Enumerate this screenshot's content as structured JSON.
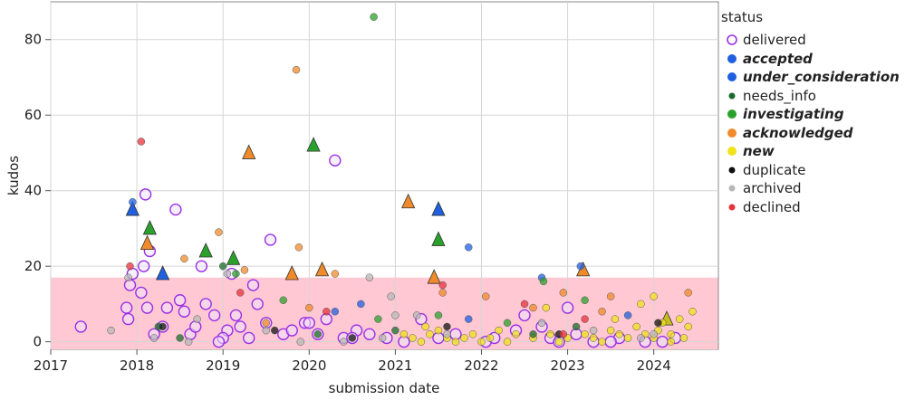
{
  "chart_data": {
    "type": "scatter",
    "xlabel": "submission date",
    "ylabel": "kudos",
    "xlim": [
      2017,
      2024.75
    ],
    "ylim": [
      -2,
      90
    ],
    "x_ticks": [
      "2017",
      "2018",
      "2019",
      "2020",
      "2021",
      "2022",
      "2023",
      "2024"
    ],
    "y_ticks": [
      "0",
      "20",
      "40",
      "60",
      "80"
    ],
    "grid": true,
    "reference_band": {
      "from": -2,
      "to": 17,
      "color": "#ffc8d2"
    },
    "legend": {
      "title": "status",
      "position": "right",
      "items": [
        {
          "key": "delivered",
          "label": "delivered",
          "color": "#9b30e6",
          "shape": "hollow-circle",
          "bold": false
        },
        {
          "key": "accepted",
          "label": "accepted",
          "color": "#1f5fe0",
          "shape": "circle",
          "bold": true
        },
        {
          "key": "under_consideration",
          "label": "under_consideration",
          "color": "#1f5fe0",
          "shape": "circle",
          "bold": true
        },
        {
          "key": "needs_info",
          "label": "needs_info",
          "color": "#1a6b2a",
          "shape": "circle",
          "bold": false
        },
        {
          "key": "investigating",
          "label": "investigating",
          "color": "#2aa12a",
          "shape": "circle",
          "bold": true
        },
        {
          "key": "acknowledged",
          "label": "acknowledged",
          "color": "#f08a2a",
          "shape": "circle",
          "bold": true
        },
        {
          "key": "new",
          "label": "new",
          "color": "#f2e21a",
          "shape": "circle",
          "bold": true
        },
        {
          "key": "duplicate",
          "label": "duplicate",
          "color": "#111111",
          "shape": "circle",
          "bold": false
        },
        {
          "key": "archived",
          "label": "archived",
          "color": "#b8b8b8",
          "shape": "circle",
          "bold": false
        },
        {
          "key": "declined",
          "label": "declined",
          "color": "#e8323c",
          "shape": "circle",
          "bold": false
        }
      ]
    },
    "series": [
      {
        "name": "delivered",
        "shape": "hollow-circle",
        "color": "#9b30e6",
        "points": [
          [
            2017.35,
            4
          ],
          [
            2017.88,
            9
          ],
          [
            2017.9,
            6
          ],
          [
            2017.92,
            15
          ],
          [
            2017.95,
            18
          ],
          [
            2018.1,
            39
          ],
          [
            2018.08,
            20
          ],
          [
            2018.15,
            24
          ],
          [
            2018.12,
            9
          ],
          [
            2018.2,
            2
          ],
          [
            2018.35,
            9
          ],
          [
            2018.45,
            35
          ],
          [
            2018.5,
            11
          ],
          [
            2018.55,
            8
          ],
          [
            2018.62,
            2
          ],
          [
            2018.75,
            20
          ],
          [
            2018.8,
            10
          ],
          [
            2018.9,
            7
          ],
          [
            2019.05,
            3
          ],
          [
            2019.1,
            18
          ],
          [
            2019.15,
            7
          ],
          [
            2019.2,
            4
          ],
          [
            2019.3,
            1
          ],
          [
            2019.35,
            15
          ],
          [
            2019.4,
            10
          ],
          [
            2019.5,
            5
          ],
          [
            2019.55,
            27
          ],
          [
            2019.7,
            2
          ],
          [
            2019.8,
            3
          ],
          [
            2019.95,
            5
          ],
          [
            2020.0,
            5
          ],
          [
            2020.1,
            2
          ],
          [
            2020.2,
            6
          ],
          [
            2020.3,
            48
          ],
          [
            2020.4,
            1
          ],
          [
            2020.55,
            3
          ],
          [
            2020.7,
            2
          ],
          [
            2020.9,
            1
          ],
          [
            2021.1,
            0
          ],
          [
            2021.3,
            6
          ],
          [
            2021.5,
            1
          ],
          [
            2021.7,
            2
          ],
          [
            2022.05,
            0
          ],
          [
            2022.15,
            1
          ],
          [
            2022.4,
            3
          ],
          [
            2022.5,
            7
          ],
          [
            2022.7,
            4
          ],
          [
            2022.8,
            1
          ],
          [
            2023.0,
            9
          ],
          [
            2023.1,
            2
          ],
          [
            2023.3,
            0
          ],
          [
            2023.6,
            1
          ],
          [
            2023.9,
            0
          ],
          [
            2024.1,
            0
          ],
          [
            2024.25,
            1
          ],
          [
            2018.3,
            4
          ],
          [
            2018.05,
            13
          ],
          [
            2018.68,
            4
          ],
          [
            2019.0,
            1
          ],
          [
            2018.95,
            0
          ],
          [
            2020.5,
            1
          ],
          [
            2022.9,
            0
          ],
          [
            2023.5,
            0
          ]
        ]
      },
      {
        "name": "accepted",
        "shape": "triangle",
        "color": "#1f5fe0",
        "points": [
          [
            2017.95,
            35
          ],
          [
            2018.3,
            18
          ],
          [
            2021.5,
            35
          ]
        ]
      },
      {
        "name": "acknowledged-triangle",
        "shape": "triangle",
        "color": "#f08a2a",
        "points": [
          [
            2018.12,
            26
          ],
          [
            2019.3,
            50
          ],
          [
            2019.8,
            18
          ],
          [
            2020.15,
            19
          ],
          [
            2021.15,
            37
          ],
          [
            2021.45,
            17
          ],
          [
            2023.18,
            19
          ]
        ]
      },
      {
        "name": "investigating-triangle",
        "shape": "triangle",
        "color": "#2aa12a",
        "points": [
          [
            2018.15,
            30
          ],
          [
            2018.8,
            24
          ],
          [
            2019.12,
            22
          ],
          [
            2020.05,
            52
          ],
          [
            2021.5,
            27
          ]
        ]
      },
      {
        "name": "new-triangle",
        "shape": "triangle",
        "color": "#c7bd20",
        "points": [
          [
            2024.15,
            6
          ]
        ]
      },
      {
        "name": "under_consideration",
        "shape": "circle",
        "color": "#1f5fe0",
        "points": [
          [
            2017.95,
            37
          ],
          [
            2021.85,
            25
          ],
          [
            2022.7,
            17
          ],
          [
            2023.15,
            20
          ],
          [
            2020.6,
            10
          ],
          [
            2020.3,
            8
          ],
          [
            2021.85,
            6
          ],
          [
            2023.7,
            7
          ]
        ]
      },
      {
        "name": "investigating",
        "shape": "circle",
        "color": "#2aa12a",
        "points": [
          [
            2020.75,
            86
          ],
          [
            2019.15,
            18
          ],
          [
            2019.7,
            11
          ],
          [
            2022.72,
            16
          ],
          [
            2023.2,
            11
          ],
          [
            2021.5,
            7
          ],
          [
            2020.8,
            6
          ],
          [
            2022.3,
            5
          ]
        ]
      },
      {
        "name": "acknowledged",
        "shape": "circle",
        "color": "#f08a2a",
        "points": [
          [
            2019.85,
            72
          ],
          [
            2018.95,
            29
          ],
          [
            2019.25,
            19
          ],
          [
            2019.88,
            25
          ],
          [
            2018.55,
            22
          ],
          [
            2020.3,
            18
          ],
          [
            2021.55,
            13
          ],
          [
            2022.05,
            12
          ],
          [
            2022.95,
            13
          ],
          [
            2023.5,
            12
          ],
          [
            2024.4,
            13
          ],
          [
            2019.5,
            5
          ],
          [
            2020.0,
            9
          ],
          [
            2022.6,
            9
          ],
          [
            2023.4,
            8
          ]
        ]
      },
      {
        "name": "new",
        "shape": "circle",
        "color": "#f2e21a",
        "points": [
          [
            2021.1,
            2
          ],
          [
            2021.2,
            1
          ],
          [
            2021.3,
            0
          ],
          [
            2021.4,
            2
          ],
          [
            2021.5,
            3
          ],
          [
            2021.6,
            1
          ],
          [
            2021.7,
            0
          ],
          [
            2021.8,
            1
          ],
          [
            2021.9,
            2
          ],
          [
            2022.0,
            0
          ],
          [
            2022.1,
            1
          ],
          [
            2022.2,
            3
          ],
          [
            2022.3,
            0
          ],
          [
            2022.4,
            2
          ],
          [
            2022.6,
            1
          ],
          [
            2022.8,
            2
          ],
          [
            2022.9,
            0
          ],
          [
            2023.0,
            1
          ],
          [
            2023.2,
            2
          ],
          [
            2023.3,
            1
          ],
          [
            2023.4,
            0
          ],
          [
            2023.5,
            3
          ],
          [
            2023.6,
            2
          ],
          [
            2023.7,
            1
          ],
          [
            2023.8,
            4
          ],
          [
            2023.9,
            2
          ],
          [
            2024.0,
            1
          ],
          [
            2024.05,
            3
          ],
          [
            2024.1,
            5
          ],
          [
            2024.2,
            2
          ],
          [
            2024.3,
            6
          ],
          [
            2024.35,
            1
          ],
          [
            2024.4,
            4
          ],
          [
            2024.45,
            8
          ],
          [
            2024.2,
            0
          ],
          [
            2024.0,
            12
          ],
          [
            2023.85,
            10
          ],
          [
            2022.75,
            9
          ],
          [
            2021.35,
            4
          ],
          [
            2023.55,
            6
          ]
        ]
      },
      {
        "name": "needs_info",
        "shape": "circle",
        "color": "#1a6b2a",
        "points": [
          [
            2018.25,
            4
          ],
          [
            2019.0,
            20
          ],
          [
            2020.1,
            2
          ],
          [
            2021.0,
            3
          ],
          [
            2022.6,
            2
          ],
          [
            2023.1,
            4
          ],
          [
            2018.5,
            1
          ]
        ]
      },
      {
        "name": "duplicate",
        "shape": "circle",
        "color": "#111111",
        "points": [
          [
            2018.3,
            4
          ],
          [
            2019.6,
            3
          ],
          [
            2020.5,
            1
          ],
          [
            2022.9,
            2
          ],
          [
            2024.05,
            5
          ],
          [
            2021.6,
            4
          ]
        ]
      },
      {
        "name": "archived",
        "shape": "circle",
        "color": "#b8b8b8",
        "points": [
          [
            2017.7,
            3
          ],
          [
            2017.9,
            17
          ],
          [
            2018.2,
            1
          ],
          [
            2018.7,
            6
          ],
          [
            2019.05,
            18
          ],
          [
            2019.5,
            3
          ],
          [
            2020.7,
            17
          ],
          [
            2020.95,
            12
          ],
          [
            2021.0,
            7
          ],
          [
            2021.6,
            2
          ],
          [
            2022.7,
            5
          ],
          [
            2023.3,
            3
          ],
          [
            2024.0,
            2
          ],
          [
            2018.6,
            0
          ],
          [
            2019.9,
            0
          ],
          [
            2020.4,
            0
          ],
          [
            2020.85,
            1
          ],
          [
            2021.25,
            7
          ],
          [
            2023.85,
            1
          ]
        ]
      },
      {
        "name": "declined",
        "shape": "circle",
        "color": "#e8323c",
        "points": [
          [
            2018.05,
            53
          ],
          [
            2017.92,
            20
          ],
          [
            2021.55,
            15
          ],
          [
            2019.2,
            13
          ],
          [
            2020.2,
            8
          ],
          [
            2022.5,
            10
          ],
          [
            2023.2,
            6
          ],
          [
            2022.95,
            2
          ]
        ]
      }
    ]
  }
}
